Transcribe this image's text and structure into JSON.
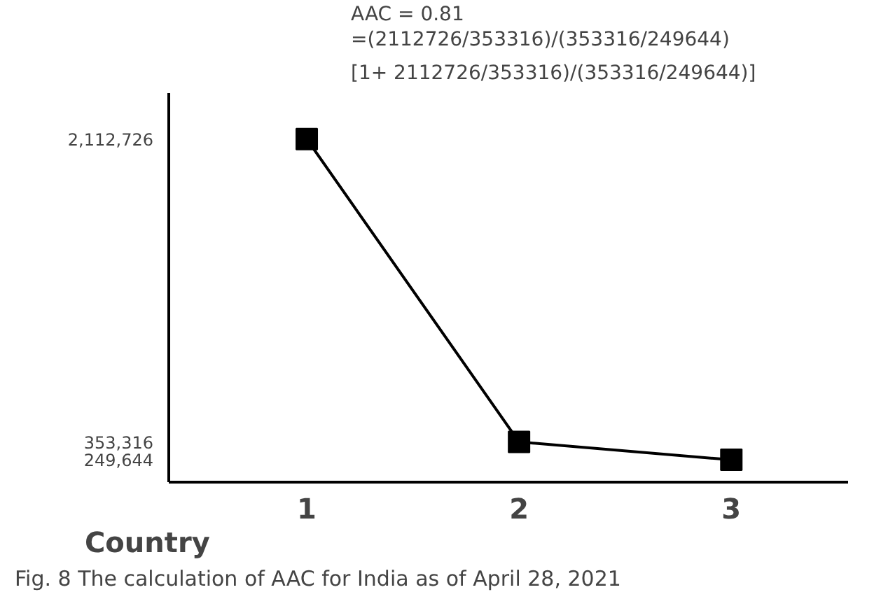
{
  "chart_data": {
    "type": "line",
    "xlabel": "Country",
    "x": [
      1,
      2,
      3
    ],
    "series": [
      {
        "color": "#000000",
        "values": [
          2112726,
          353316,
          249644
        ]
      }
    ],
    "xlim": [
      0.35,
      3.55
    ],
    "xticks": [
      1,
      2,
      3
    ],
    "ylim": [
      120000,
      2380000
    ],
    "yticks": [
      {
        "value": 249644,
        "label": "249,644"
      },
      {
        "value": 353316,
        "label": "353,316"
      },
      {
        "value": 2112726,
        "label": "2,112,726"
      }
    ],
    "marker": "square",
    "line_style": "solid",
    "grid": false,
    "annotations": [
      "AAC =  0.81",
      "=(2112726/353316)/(353316/249644)",
      "[1+ 2112726/353316)/(353316/249644)]",
      "Fig. 8  The calculation of AAC for India as of April 28, 2021"
    ]
  }
}
